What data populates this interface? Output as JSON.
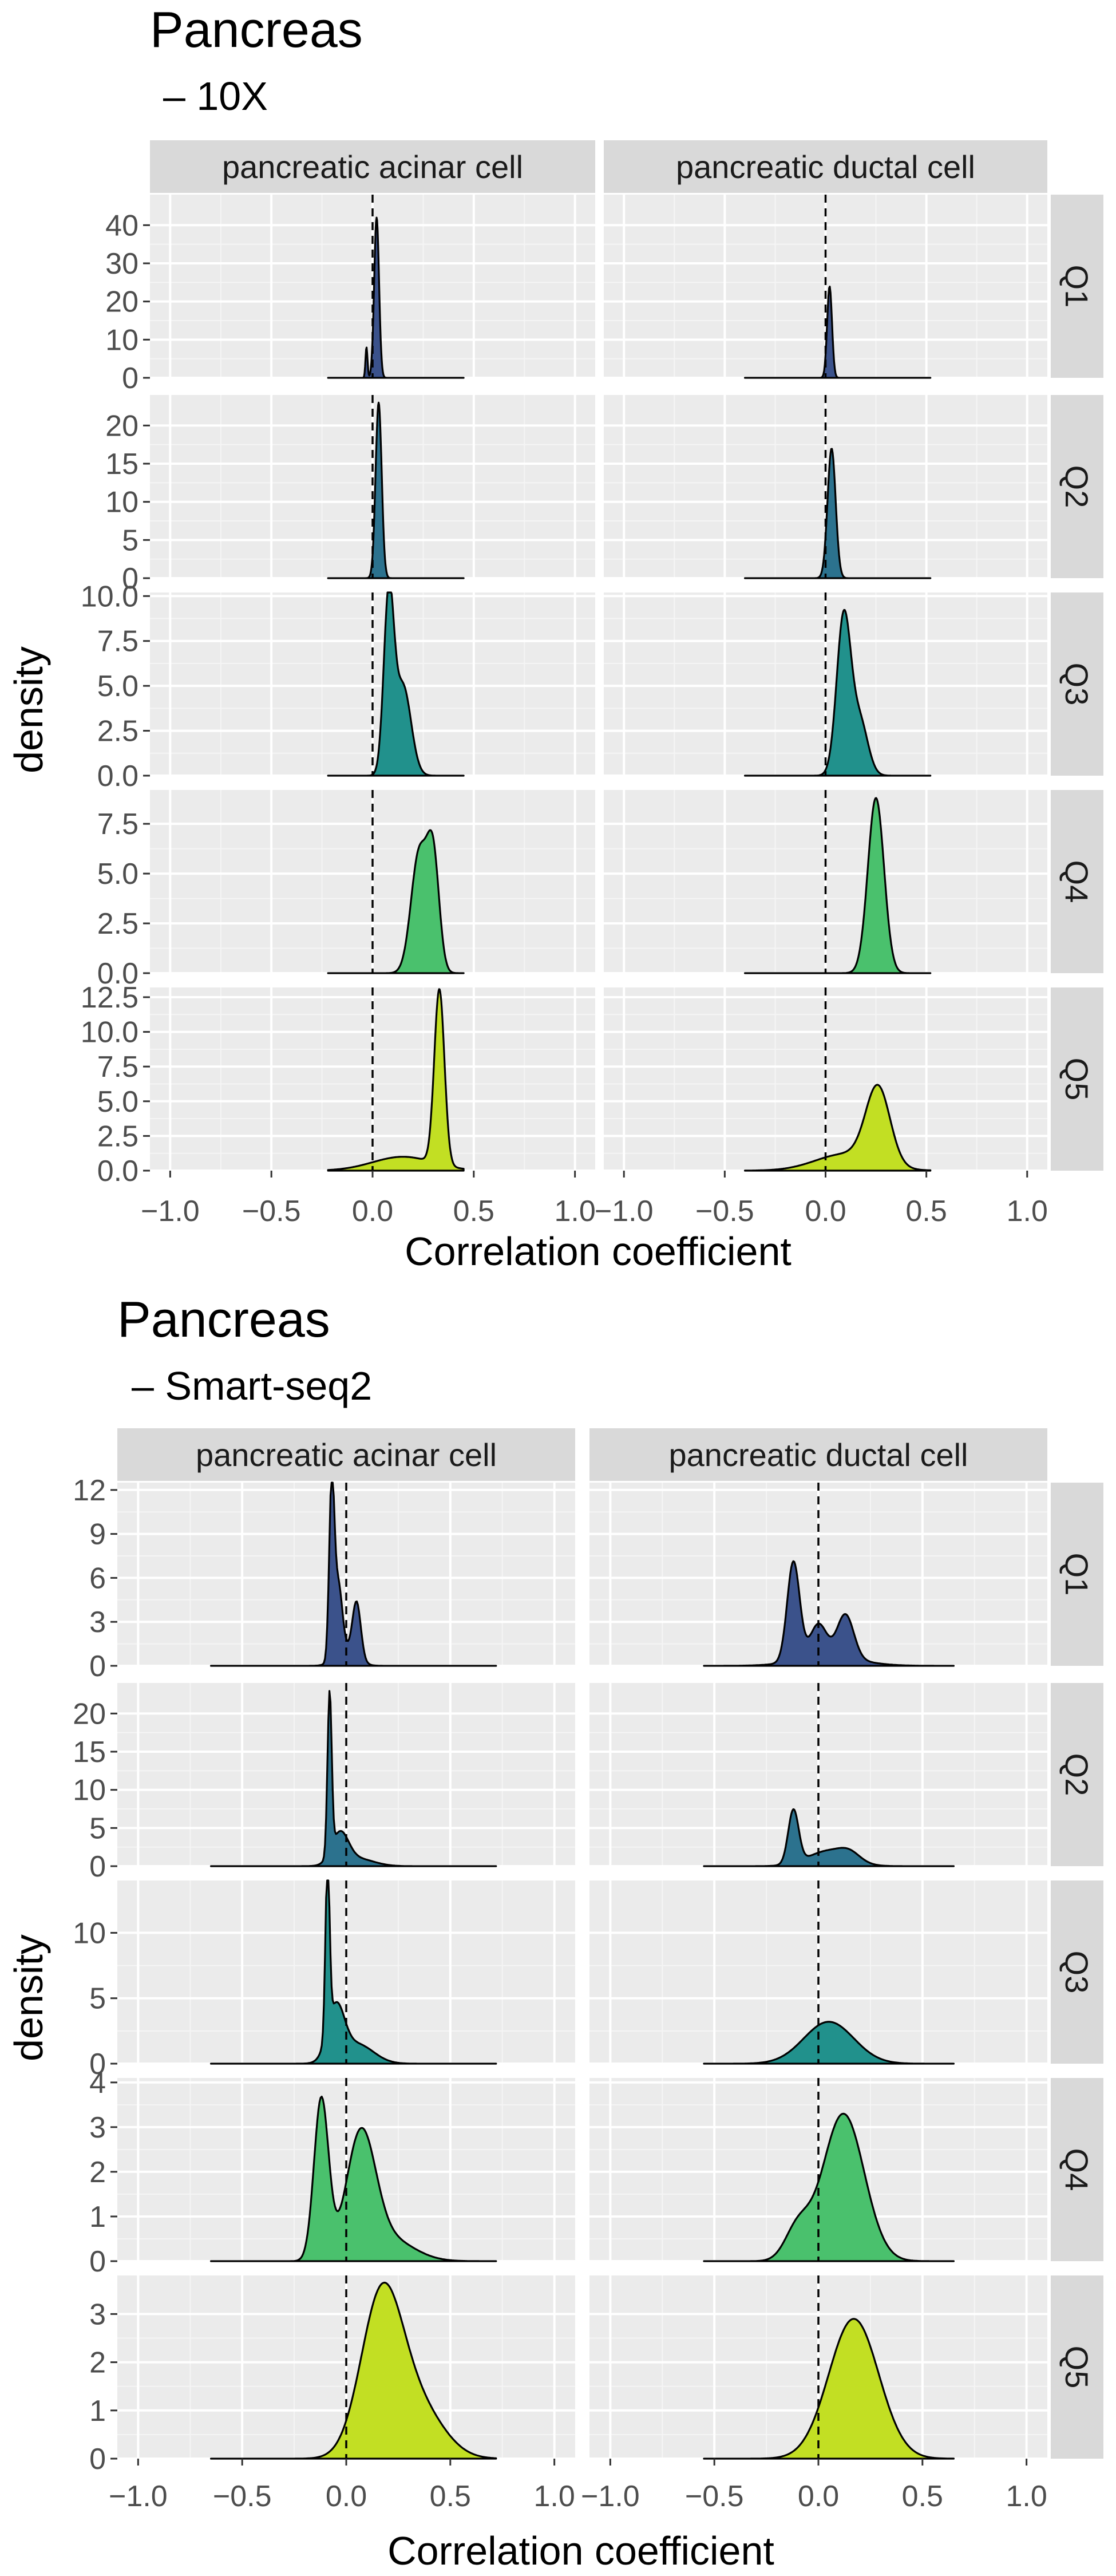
{
  "chart_data": [
    {
      "type": "area",
      "title": "Pancreas",
      "subtitle": "– 10X",
      "xlabel": "Correlation coefficient",
      "ylabel": "density",
      "xlim": [
        -1.1,
        1.1
      ],
      "x_ticks": [
        -1.0,
        -0.5,
        0.0,
        0.5,
        1.0
      ],
      "x_tick_labels": [
        "−1.0",
        "−0.5",
        "0.0",
        "0.5",
        "1.0"
      ],
      "reference_line_x": 0.0,
      "columns": [
        "pancreatic acinar cell",
        "pancreatic ductal cell"
      ],
      "rows": [
        {
          "label": "Q1",
          "color": "#3b528b",
          "ylim": [
            0,
            48
          ],
          "ticks": [
            0,
            10,
            20,
            30,
            40
          ],
          "tick_labels": [
            "0",
            "10",
            "20",
            "30",
            "40"
          ]
        },
        {
          "label": "Q2",
          "color": "#2c728e",
          "ylim": [
            0,
            24
          ],
          "ticks": [
            0,
            5,
            10,
            15,
            20
          ],
          "tick_labels": [
            "0",
            "5",
            "10",
            "15",
            "20"
          ]
        },
        {
          "label": "Q3",
          "color": "#21918c",
          "ylim": [
            0,
            10.2
          ],
          "ticks": [
            0,
            2.5,
            5,
            7.5,
            10
          ],
          "tick_labels": [
            "0.0",
            "2.5",
            "5.0",
            "7.5",
            "10.0"
          ]
        },
        {
          "label": "Q4",
          "color": "#4ac16d",
          "ylim": [
            0,
            9.2
          ],
          "ticks": [
            0,
            2.5,
            5,
            7.5
          ],
          "tick_labels": [
            "0.0",
            "2.5",
            "5.0",
            "7.5"
          ]
        },
        {
          "label": "Q5",
          "color": "#c2df23",
          "ylim": [
            0,
            13.2
          ],
          "ticks": [
            0,
            2.5,
            5,
            7.5,
            10,
            12.5
          ],
          "tick_labels": [
            "0.0",
            "2.5",
            "5.0",
            "7.5",
            "10.0",
            "12.5"
          ]
        }
      ],
      "panels": [
        [
          {
            "support": [
              -0.22,
              0.45
            ],
            "components": [
              {
                "mu": 0.02,
                "sigma": 0.012,
                "peak": 42
              },
              {
                "mu": -0.03,
                "sigma": 0.005,
                "peak": 8
              }
            ]
          },
          {
            "support": [
              -0.4,
              0.52
            ],
            "components": [
              {
                "mu": 0.02,
                "sigma": 0.012,
                "peak": 24
              }
            ]
          }
        ],
        [
          {
            "support": [
              -0.22,
              0.45
            ],
            "components": [
              {
                "mu": 0.03,
                "sigma": 0.015,
                "peak": 23
              }
            ]
          },
          {
            "support": [
              -0.4,
              0.52
            ],
            "components": [
              {
                "mu": 0.03,
                "sigma": 0.02,
                "peak": 17
              }
            ]
          }
        ],
        [
          {
            "support": [
              -0.22,
              0.45
            ],
            "components": [
              {
                "mu": 0.08,
                "sigma": 0.025,
                "peak": 9.7
              },
              {
                "mu": 0.15,
                "sigma": 0.04,
                "peak": 5
              }
            ]
          },
          {
            "support": [
              -0.4,
              0.52
            ],
            "components": [
              {
                "mu": 0.09,
                "sigma": 0.035,
                "peak": 8.8
              },
              {
                "mu": 0.17,
                "sigma": 0.04,
                "peak": 3
              }
            ]
          }
        ],
        [
          {
            "support": [
              -0.22,
              0.45
            ],
            "components": [
              {
                "mu": 0.23,
                "sigma": 0.04,
                "peak": 6
              },
              {
                "mu": 0.3,
                "sigma": 0.03,
                "peak": 5.5
              }
            ]
          },
          {
            "support": [
              -0.4,
              0.52
            ],
            "components": [
              {
                "mu": 0.25,
                "sigma": 0.04,
                "peak": 8.8
              }
            ]
          }
        ],
        [
          {
            "support": [
              -0.22,
              0.45
            ],
            "components": [
              {
                "mu": 0.33,
                "sigma": 0.025,
                "peak": 12.6
              },
              {
                "mu": 0.15,
                "sigma": 0.15,
                "peak": 1
              }
            ]
          },
          {
            "support": [
              -0.4,
              0.52
            ],
            "components": [
              {
                "mu": 0.26,
                "sigma": 0.06,
                "peak": 5.5
              },
              {
                "mu": 0.1,
                "sigma": 0.15,
                "peak": 1.2
              }
            ]
          }
        ]
      ]
    },
    {
      "type": "area",
      "title": "Pancreas",
      "subtitle": "– Smart-seq2",
      "xlabel": "Correlation coefficient",
      "ylabel": "density",
      "xlim": [
        -1.1,
        1.1
      ],
      "x_ticks": [
        -1.0,
        -0.5,
        0.0,
        0.5,
        1.0
      ],
      "x_tick_labels": [
        "−1.0",
        "−0.5",
        "0.0",
        "0.5",
        "1.0"
      ],
      "reference_line_x": 0.0,
      "columns": [
        "pancreatic acinar cell",
        "pancreatic ductal cell"
      ],
      "rows": [
        {
          "label": "Q1",
          "color": "#3b528b",
          "ylim": [
            0,
            12.5
          ],
          "ticks": [
            0,
            3,
            6,
            9,
            12
          ],
          "tick_labels": [
            "0",
            "3",
            "6",
            "9",
            "12"
          ]
        },
        {
          "label": "Q2",
          "color": "#2c728e",
          "ylim": [
            0,
            24
          ],
          "ticks": [
            0,
            5,
            10,
            15,
            20
          ],
          "tick_labels": [
            "0",
            "5",
            "10",
            "15",
            "20"
          ]
        },
        {
          "label": "Q3",
          "color": "#21918c",
          "ylim": [
            0,
            14
          ],
          "ticks": [
            0,
            5,
            10
          ],
          "tick_labels": [
            "0",
            "5",
            "10"
          ]
        },
        {
          "label": "Q4",
          "color": "#4ac16d",
          "ylim": [
            0,
            4.1
          ],
          "ticks": [
            0,
            1,
            2,
            3,
            4
          ],
          "tick_labels": [
            "0",
            "1",
            "2",
            "3",
            "4"
          ]
        },
        {
          "label": "Q5",
          "color": "#c2df23",
          "ylim": [
            0,
            3.8
          ],
          "ticks": [
            0,
            1,
            2,
            3
          ],
          "tick_labels": [
            "0",
            "1",
            "2",
            "3"
          ]
        }
      ],
      "panels": [
        [
          {
            "support": [
              -0.65,
              0.72
            ],
            "components": [
              {
                "mu": -0.07,
                "sigma": 0.012,
                "peak": 11.5
              },
              {
                "mu": -0.04,
                "sigma": 0.02,
                "peak": 5
              },
              {
                "mu": 0.05,
                "sigma": 0.02,
                "peak": 3.8
              },
              {
                "mu": 0.0,
                "sigma": 0.05,
                "peak": 1
              }
            ]
          },
          {
            "support": [
              -0.55,
              0.65
            ],
            "components": [
              {
                "mu": -0.12,
                "sigma": 0.03,
                "peak": 6.8
              },
              {
                "mu": 0.0,
                "sigma": 0.04,
                "peak": 2.3
              },
              {
                "mu": 0.13,
                "sigma": 0.04,
                "peak": 3
              },
              {
                "mu": 0.05,
                "sigma": 0.15,
                "peak": 0.6
              }
            ]
          }
        ],
        [
          {
            "support": [
              -0.65,
              0.72
            ],
            "components": [
              {
                "mu": -0.08,
                "sigma": 0.01,
                "peak": 21
              },
              {
                "mu": -0.03,
                "sigma": 0.04,
                "peak": 4
              },
              {
                "mu": 0.05,
                "sigma": 0.08,
                "peak": 1
              }
            ]
          },
          {
            "support": [
              -0.55,
              0.65
            ],
            "components": [
              {
                "mu": -0.12,
                "sigma": 0.025,
                "peak": 7
              },
              {
                "mu": 0.05,
                "sigma": 0.1,
                "peak": 2
              },
              {
                "mu": 0.15,
                "sigma": 0.05,
                "peak": 1
              }
            ]
          }
        ],
        [
          {
            "support": [
              -0.65,
              0.72
            ],
            "components": [
              {
                "mu": -0.09,
                "sigma": 0.01,
                "peak": 13
              },
              {
                "mu": -0.05,
                "sigma": 0.04,
                "peak": 4
              },
              {
                "mu": 0.05,
                "sigma": 0.08,
                "peak": 1.5
              }
            ]
          },
          {
            "support": [
              -0.55,
              0.65
            ],
            "components": [
              {
                "mu": 0.05,
                "sigma": 0.12,
                "peak": 3.2
              }
            ]
          }
        ],
        [
          {
            "support": [
              -0.65,
              0.72
            ],
            "components": [
              {
                "mu": -0.12,
                "sigma": 0.035,
                "peak": 3.6
              },
              {
                "mu": 0.07,
                "sigma": 0.07,
                "peak": 2.7
              },
              {
                "mu": 0.2,
                "sigma": 0.12,
                "peak": 0.5
              }
            ]
          },
          {
            "support": [
              -0.55,
              0.65
            ],
            "components": [
              {
                "mu": 0.12,
                "sigma": 0.1,
                "peak": 3.3
              },
              {
                "mu": -0.1,
                "sigma": 0.06,
                "peak": 0.7
              }
            ]
          }
        ],
        [
          {
            "support": [
              -0.65,
              0.72
            ],
            "components": [
              {
                "mu": 0.17,
                "sigma": 0.1,
                "peak": 3.3
              },
              {
                "mu": 0.35,
                "sigma": 0.12,
                "peak": 1
              }
            ]
          },
          {
            "support": [
              -0.55,
              0.65
            ],
            "components": [
              {
                "mu": 0.17,
                "sigma": 0.12,
                "peak": 2.9
              }
            ]
          }
        ]
      ]
    }
  ]
}
